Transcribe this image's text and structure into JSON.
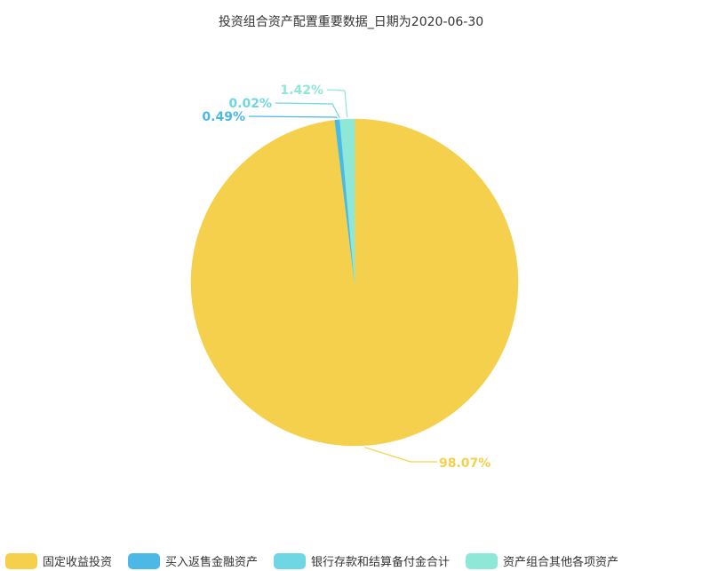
{
  "chart_data": {
    "type": "pie",
    "title": "投资组合资产配置重要数据_日期为2020-06-30",
    "categories": [
      "固定收益投资",
      "买入返售金融资产",
      "银行存款和结算备付金合计",
      "资产组合其他各项资产"
    ],
    "values": [
      98.07,
      0.49,
      0.02,
      1.42
    ],
    "labels": [
      "98.07%",
      "0.49%",
      "0.02%",
      "1.42%"
    ],
    "colors": [
      "#f5d04c",
      "#4bb8e6",
      "#6fd6e4",
      "#8ee8d8"
    ],
    "legend_position": "bottom"
  }
}
